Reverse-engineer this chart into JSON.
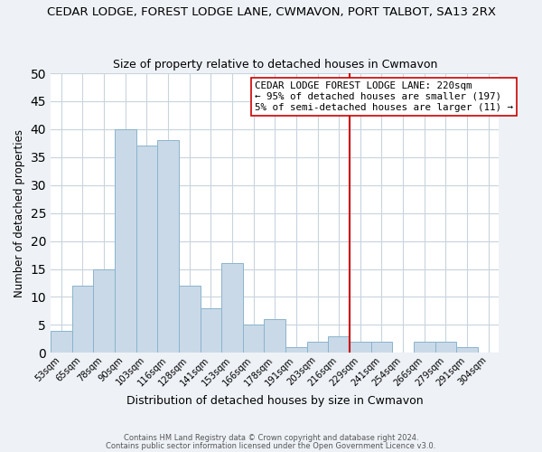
{
  "title": "CEDAR LODGE, FOREST LODGE LANE, CWMAVON, PORT TALBOT, SA13 2RX",
  "subtitle": "Size of property relative to detached houses in Cwmavon",
  "xlabel": "Distribution of detached houses by size in Cwmavon",
  "ylabel": "Number of detached properties",
  "bin_labels": [
    "53sqm",
    "65sqm",
    "78sqm",
    "90sqm",
    "103sqm",
    "116sqm",
    "128sqm",
    "141sqm",
    "153sqm",
    "166sqm",
    "178sqm",
    "191sqm",
    "203sqm",
    "216sqm",
    "229sqm",
    "241sqm",
    "254sqm",
    "266sqm",
    "279sqm",
    "291sqm",
    "304sqm"
  ],
  "bar_heights": [
    4,
    12,
    15,
    40,
    37,
    38,
    12,
    8,
    16,
    5,
    6,
    1,
    2,
    3,
    2,
    2,
    0,
    2,
    2,
    1,
    0
  ],
  "bar_color": "#c9d9e8",
  "bar_edgecolor": "#8ab4cc",
  "vline_color": "#cc0000",
  "ylim": [
    0,
    50
  ],
  "yticks": [
    0,
    5,
    10,
    15,
    20,
    25,
    30,
    35,
    40,
    45,
    50
  ],
  "annotation_text": "CEDAR LODGE FOREST LODGE LANE: 220sqm\n← 95% of detached houses are smaller (197)\n5% of semi-detached houses are larger (11) →",
  "footnote1": "Contains HM Land Registry data © Crown copyright and database right 2024.",
  "footnote2": "Contains public sector information licensed under the Open Government Licence v3.0.",
  "background_color": "#eef2f7",
  "plot_background": "#ffffff",
  "grid_color": "#c8d4de",
  "title_fontsize": 9.5,
  "subtitle_fontsize": 9.0,
  "ylabel_fontsize": 8.5,
  "xlabel_fontsize": 9.0
}
